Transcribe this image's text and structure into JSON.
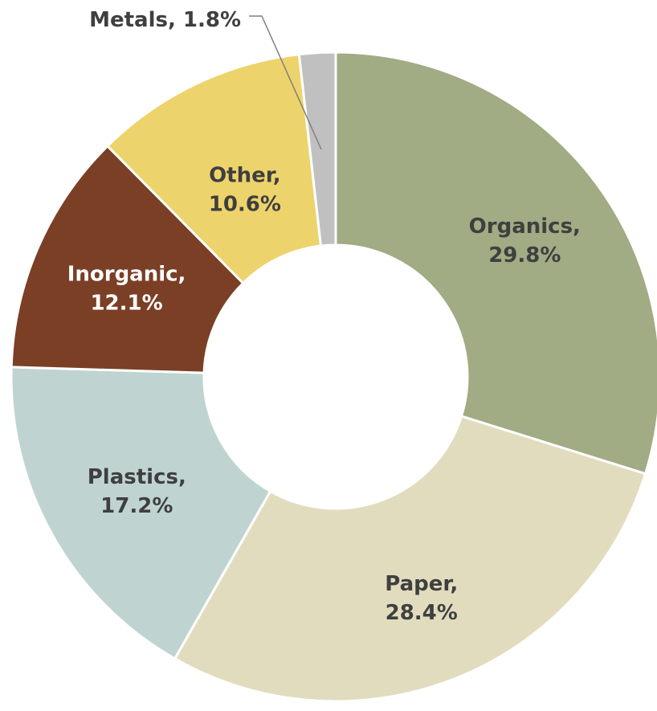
{
  "chart_data": {
    "type": "pie",
    "style": "donut",
    "categories": [
      "Organics",
      "Paper",
      "Plastics",
      "Inorganic",
      "Other",
      "Metals"
    ],
    "values": [
      29.8,
      28.4,
      17.2,
      12.1,
      10.6,
      1.8
    ],
    "labels": [
      {
        "name": "Organics,",
        "value": "29.8%"
      },
      {
        "name": "Paper,",
        "value": "28.4%"
      },
      {
        "name": "Plastics,",
        "value": "17.2%"
      },
      {
        "name": "Inorganic,",
        "value": "12.1%"
      },
      {
        "name": "Other,",
        "value": "10.6%"
      },
      {
        "name": "Metals, 1.8%",
        "value": ""
      }
    ],
    "colors": [
      "#a1ab84",
      "#e2dcbf",
      "#bfd4d1",
      "#7a3f25",
      "#edd36b",
      "#c0c0c0"
    ],
    "label_colors": [
      "#3f3f3f",
      "#3f3f3f",
      "#3f3f3f",
      "#ffffff",
      "#3f3f3f",
      "#3f3f3f"
    ],
    "title": "",
    "legend": "none",
    "start_angle_deg": 0,
    "direction": "clockwise"
  }
}
